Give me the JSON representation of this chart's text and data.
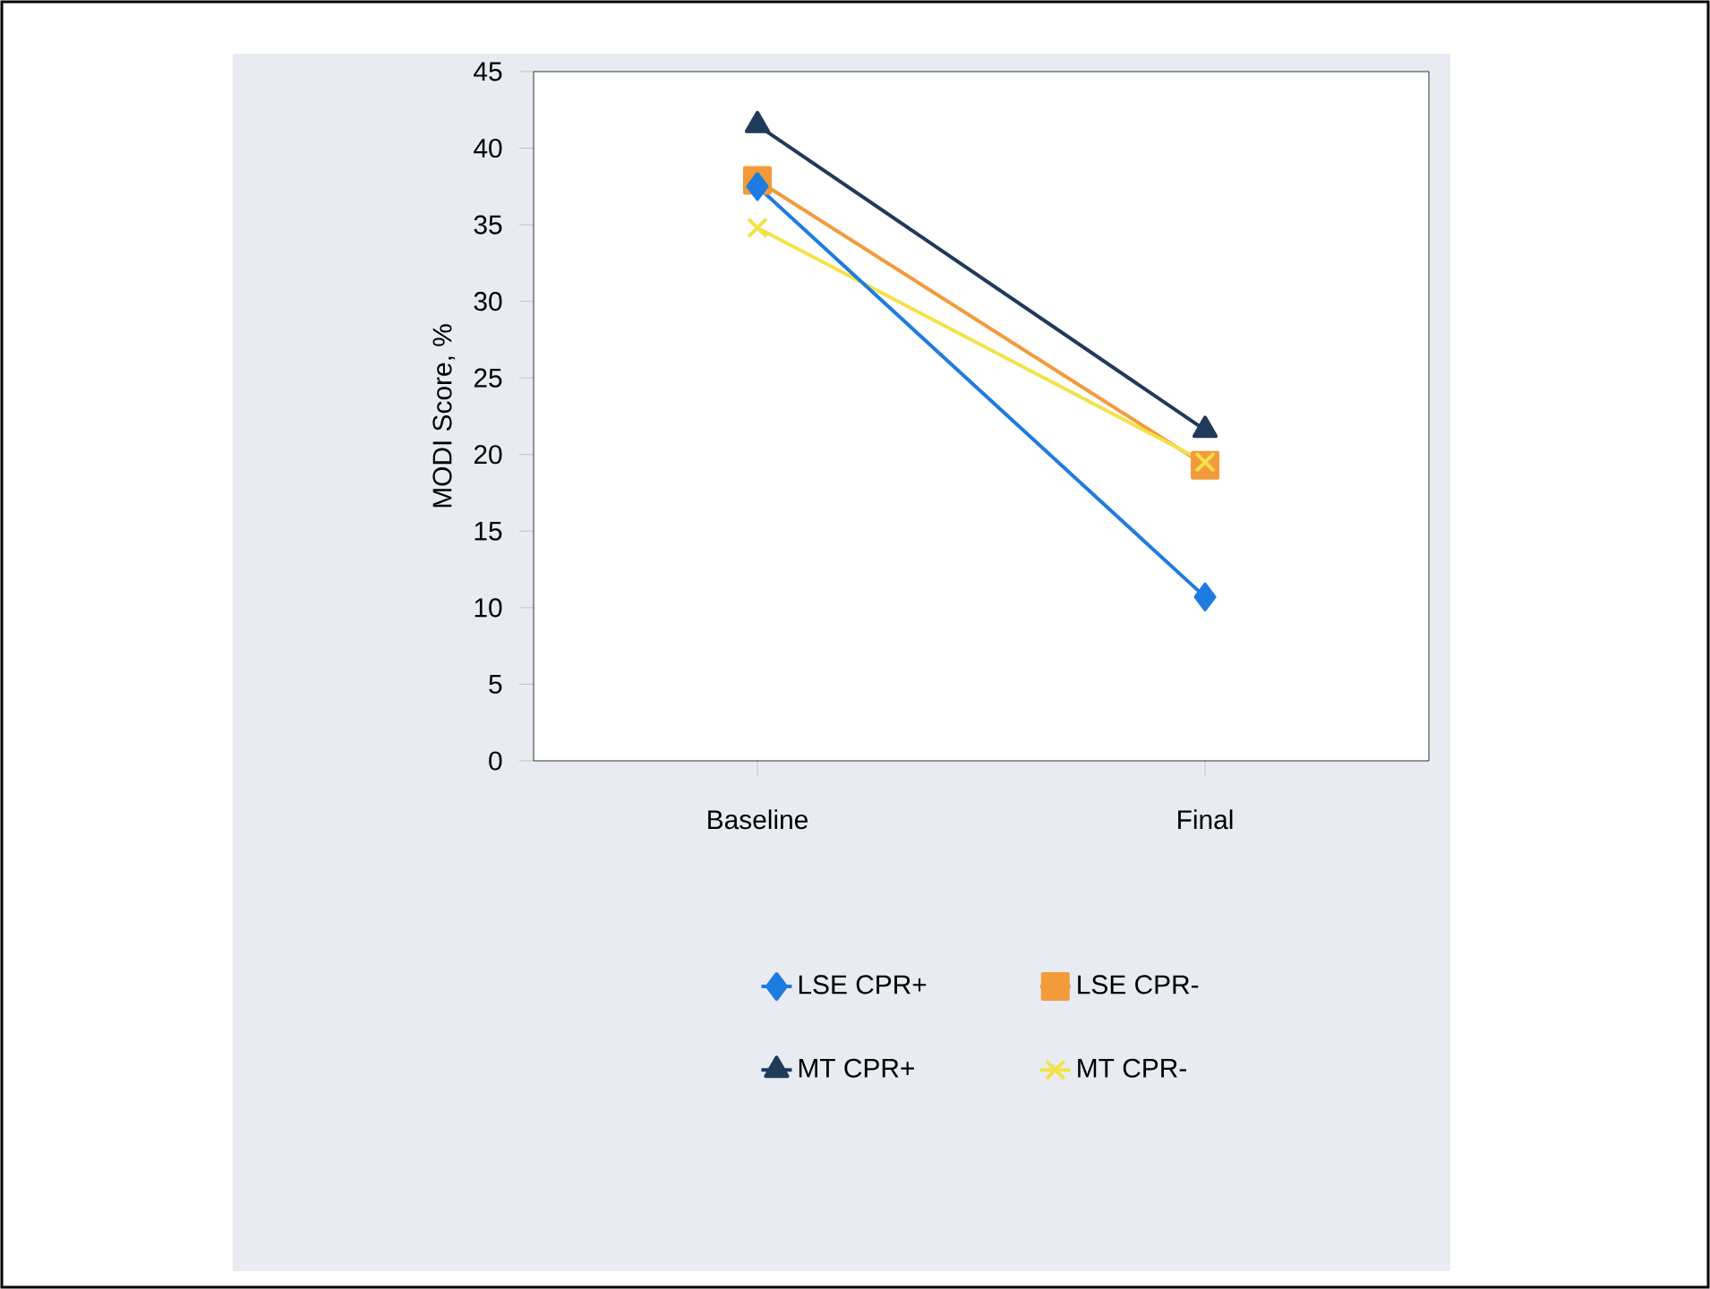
{
  "chart_data": {
    "type": "line",
    "ylabel": "MODI Score, %",
    "categories": [
      "Baseline",
      "Final"
    ],
    "series": [
      {
        "name": "LSE CPR+",
        "color": "#1e7be0",
        "marker": "diamond",
        "values": [
          37.5,
          10.7
        ]
      },
      {
        "name": "LSE CPR-",
        "color": "#f39a3b",
        "marker": "square",
        "values": [
          37.9,
          19.3
        ]
      },
      {
        "name": "MT CPR+",
        "color": "#1f3a5a",
        "marker": "triangle",
        "values": [
          41.5,
          21.6
        ]
      },
      {
        "name": "MT CPR-",
        "color": "#f2e24a",
        "marker": "cross",
        "values": [
          34.8,
          19.5
        ]
      }
    ],
    "ylim": [
      0,
      45
    ],
    "yticks": [
      0,
      5,
      10,
      15,
      20,
      25,
      30,
      35,
      40,
      45
    ],
    "legend": "bottom",
    "grid": false,
    "line_style": "solid"
  }
}
